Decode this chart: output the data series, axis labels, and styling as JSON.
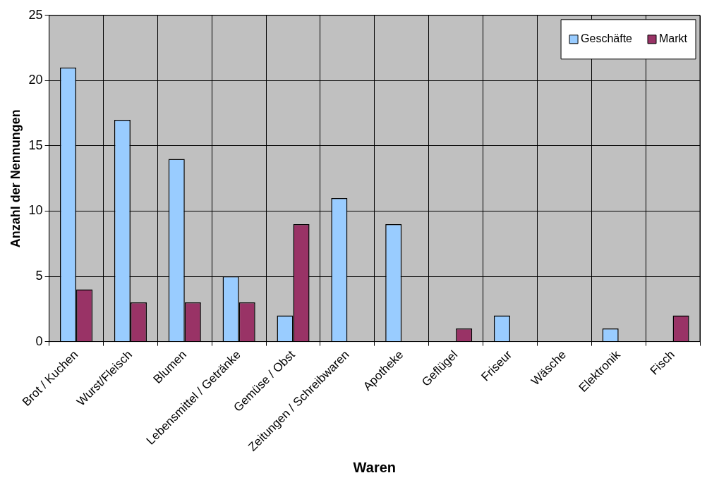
{
  "chart_data": {
    "type": "bar",
    "xlabel": "Waren",
    "ylabel": "Anzahl der Nennungen",
    "categories": [
      "Brot / Kuchen",
      "Wurst/Fleisch",
      "Blumen",
      "Lebensmittel / Getränke",
      "Gemüse / Obst",
      "Zeitungen / Schreibwaren",
      "Apotheke",
      "Geflügel",
      "Friseur",
      "Wäsche",
      "Elektronik",
      "Fisch"
    ],
    "series": [
      {
        "name": "Geschäfte",
        "color": "#99ccff",
        "values": [
          21,
          17,
          14,
          5,
          2,
          11,
          9,
          0,
          2,
          0,
          1,
          0
        ]
      },
      {
        "name": "Markt",
        "color": "#993366",
        "values": [
          4,
          3,
          3,
          3,
          9,
          0,
          0,
          1,
          0,
          0,
          0,
          2
        ]
      }
    ],
    "ylim": [
      0,
      25
    ],
    "yticks": [
      0,
      5,
      10,
      15,
      20,
      25
    ],
    "grid": true,
    "legend": "top right"
  }
}
